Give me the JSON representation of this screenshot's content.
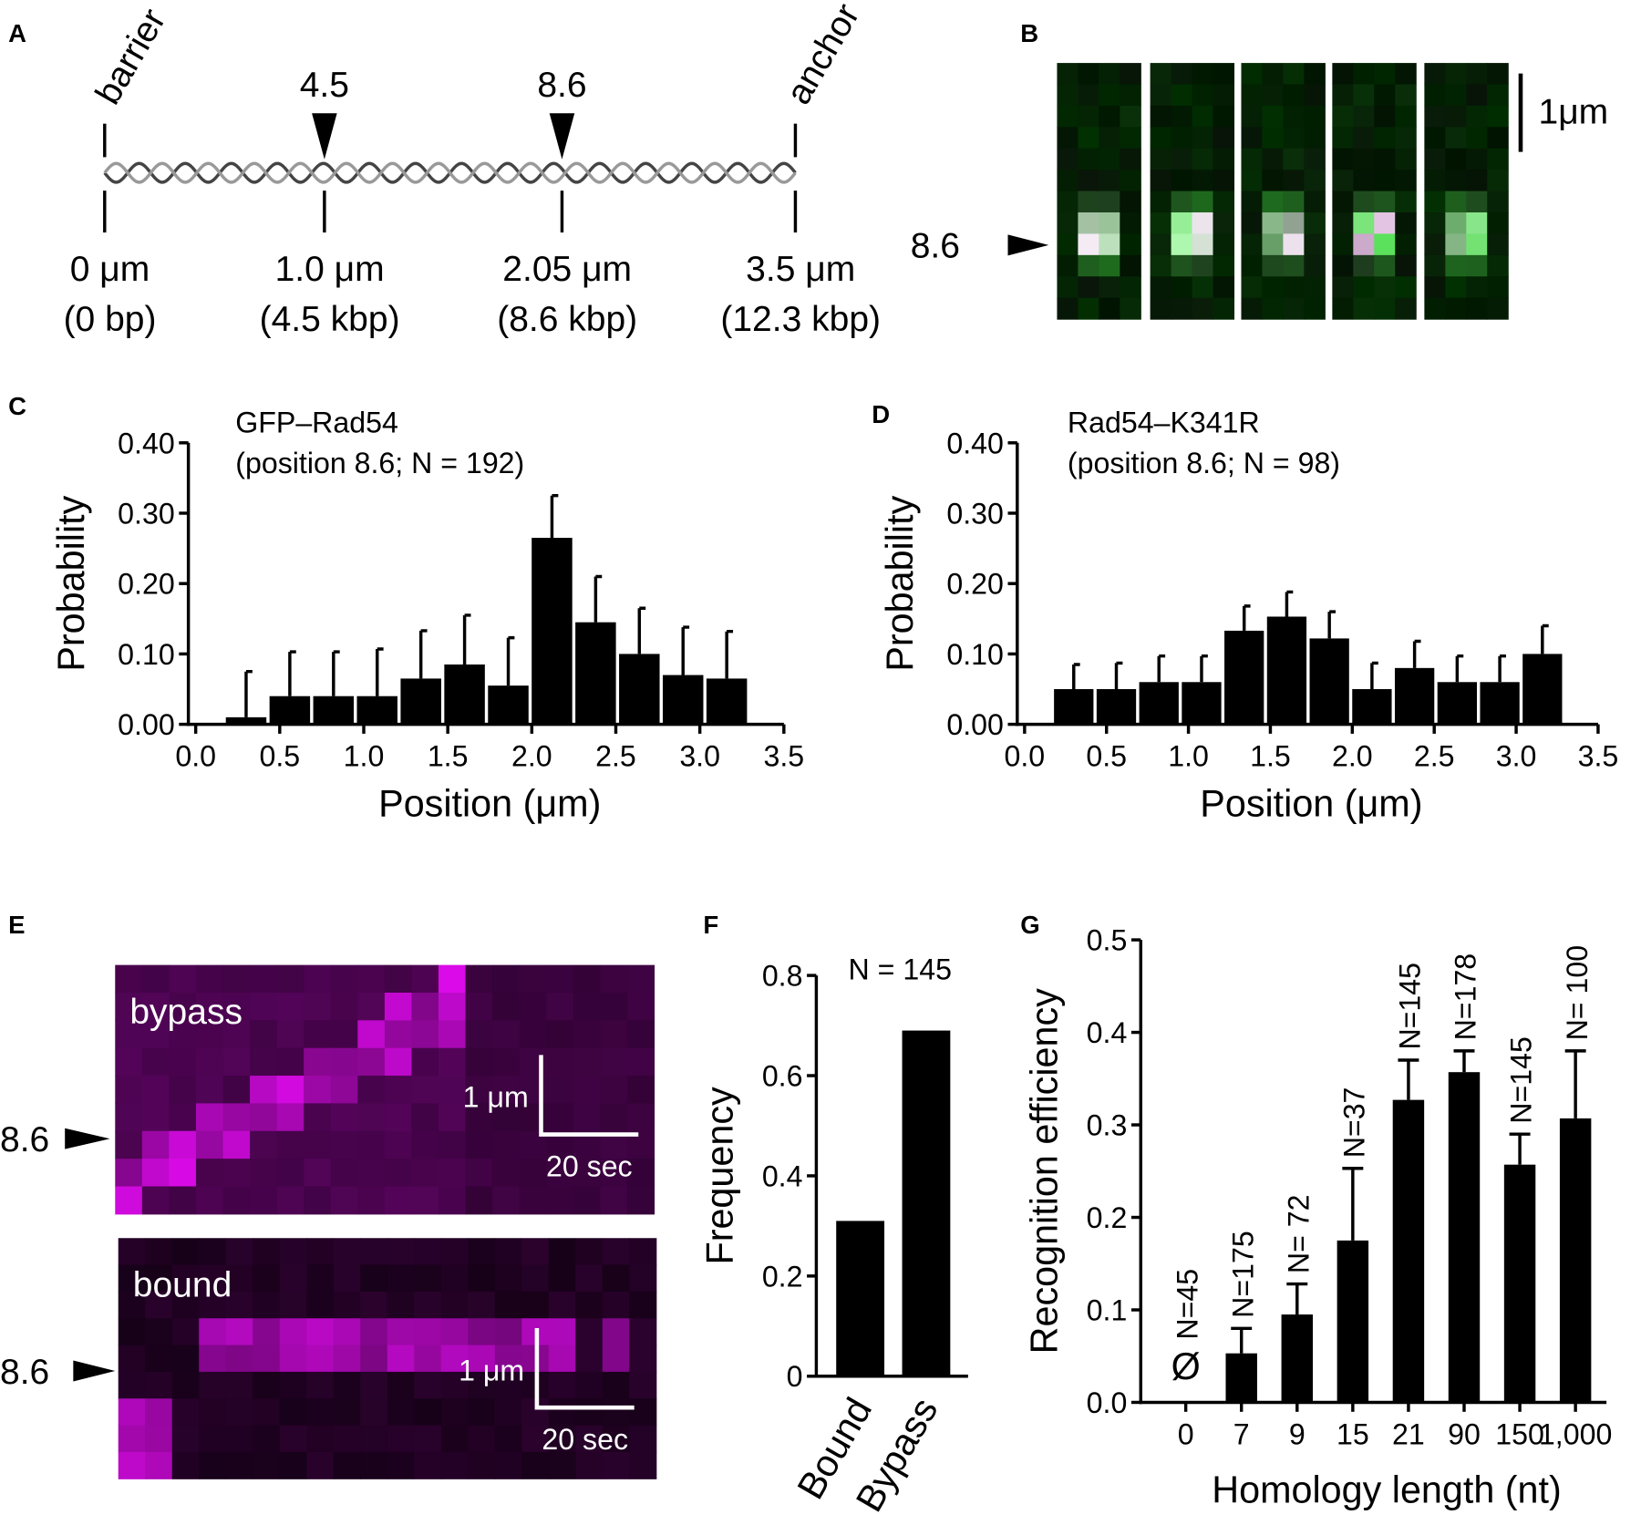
{
  "panel_labels": [
    "A",
    "B",
    "C",
    "D",
    "E",
    "F",
    "G"
  ],
  "panel_a": {
    "ends": [
      "barrier",
      "anchor"
    ],
    "sites": [
      "4.5",
      "8.6"
    ],
    "positions": [
      [
        "0 μm",
        "(0 bp)"
      ],
      [
        "1.0 μm",
        "(4.5 kbp)"
      ],
      [
        "2.05 μm",
        "(8.6 kbp)"
      ],
      [
        "3.5 μm",
        "(12.3 kbp)"
      ]
    ]
  },
  "panel_b": {
    "site": "8.6",
    "scale_bar": "1μm"
  },
  "panel_e": {
    "kymographs": [
      {
        "label": "bypass",
        "scale_length": "1 μm",
        "scale_time": "20 sec",
        "site": "8.6"
      },
      {
        "label": "bound",
        "scale_length": "1 μm",
        "scale_time": "20 sec",
        "site": "8.6"
      }
    ]
  },
  "chart_data": [
    {
      "type": "histogram",
      "title": "GFP–Rad54",
      "subtitle": "(position 8.6; N = 192)",
      "x_label": "Position (μm)",
      "y_label": "Probability",
      "color": "#000000",
      "bins": [
        0.17,
        0.43,
        0.69,
        0.95,
        1.21,
        1.47,
        1.73,
        1.99,
        2.25,
        2.51,
        2.77,
        3.03,
        3.29
      ],
      "values": [
        0.01,
        0.04,
        0.04,
        0.04,
        0.065,
        0.085,
        0.055,
        0.265,
        0.145,
        0.1,
        0.07,
        0.065
      ],
      "errors": [
        0.065,
        0.063,
        0.063,
        0.067,
        0.068,
        0.07,
        0.068,
        0.06,
        0.065,
        0.065,
        0.068,
        0.067
      ],
      "xlim": [
        0,
        3.5
      ],
      "xticks": [
        {
          "value": 0,
          "label": "0.0"
        },
        {
          "value": 0.5,
          "label": "0.5"
        },
        {
          "value": 1,
          "label": "1.0"
        },
        {
          "value": 1.5,
          "label": "1.5"
        },
        {
          "value": 2,
          "label": "2.0"
        },
        {
          "value": 2.5,
          "label": "2.5"
        },
        {
          "value": 3,
          "label": "3.0"
        },
        {
          "value": 3.5,
          "label": "3.5"
        }
      ],
      "ylim": [
        0,
        0.4
      ],
      "yticks": [
        {
          "value": 0,
          "label": "0.00"
        },
        {
          "value": 0.1,
          "label": "0.10"
        },
        {
          "value": 0.2,
          "label": "0.20"
        },
        {
          "value": 0.3,
          "label": "0.30"
        },
        {
          "value": 0.4,
          "label": "0.40"
        }
      ]
    },
    {
      "type": "histogram",
      "title": "Rad54–K341R",
      "subtitle": "(position 8.6; N = 98)",
      "x_label": "Position (μm)",
      "y_label": "Probability",
      "color": "#000000",
      "bins": [
        0.17,
        0.43,
        0.69,
        0.95,
        1.21,
        1.47,
        1.73,
        1.99,
        2.25,
        2.51,
        2.77,
        3.03,
        3.29
      ],
      "values": [
        0.05,
        0.05,
        0.06,
        0.06,
        0.133,
        0.153,
        0.122,
        0.05,
        0.08,
        0.06,
        0.06,
        0.1
      ],
      "errors": [
        0.035,
        0.037,
        0.037,
        0.037,
        0.035,
        0.035,
        0.038,
        0.037,
        0.038,
        0.037,
        0.037,
        0.04
      ],
      "xlim": [
        0,
        3.5
      ],
      "xticks": [
        {
          "value": 0,
          "label": "0.0"
        },
        {
          "value": 0.5,
          "label": "0.5"
        },
        {
          "value": 1,
          "label": "1.0"
        },
        {
          "value": 1.5,
          "label": "1.5"
        },
        {
          "value": 2,
          "label": "2.0"
        },
        {
          "value": 2.5,
          "label": "2.5"
        },
        {
          "value": 3,
          "label": "3.0"
        },
        {
          "value": 3.5,
          "label": "3.5"
        }
      ],
      "ylim": [
        0,
        0.4
      ],
      "yticks": [
        {
          "value": 0,
          "label": "0.00"
        },
        {
          "value": 0.1,
          "label": "0.10"
        },
        {
          "value": 0.2,
          "label": "0.20"
        },
        {
          "value": 0.3,
          "label": "0.30"
        },
        {
          "value": 0.4,
          "label": "0.40"
        }
      ]
    },
    {
      "type": "bar",
      "annotation": "N = 145",
      "y_label": "Frequency",
      "color": "#000000",
      "categories": [
        "Bound",
        "Bypass"
      ],
      "values": [
        0.31,
        0.69
      ],
      "ylim": [
        0,
        0.8
      ],
      "yticks": [
        0,
        0.2,
        0.4,
        0.6,
        0.8
      ]
    },
    {
      "type": "bar",
      "y_label": "Recognition efficiency",
      "x_label": "Homology length (nt)",
      "color": "#000000",
      "categories": [
        "0",
        "7",
        "9",
        "15",
        "21",
        "90",
        "150",
        "1,000"
      ],
      "values": [
        null,
        0.053,
        0.095,
        0.175,
        0.327,
        0.357,
        0.257,
        0.307
      ],
      "errors": [
        null,
        0.027,
        0.033,
        0.078,
        0.043,
        0.023,
        0.033,
        0.073
      ],
      "n_labels": [
        "N=45",
        "N=175",
        "N= 72",
        "N=37",
        "N=145",
        "N=178",
        "N=145",
        "N= 100"
      ],
      "empty_label": "Ø",
      "ylim": [
        0,
        0.5
      ],
      "yticks": [
        {
          "value": 0,
          "label": "0.0"
        },
        {
          "value": 0.1,
          "label": "0.1"
        },
        {
          "value": 0.2,
          "label": "0.2"
        },
        {
          "value": 0.3,
          "label": "0.3"
        },
        {
          "value": 0.4,
          "label": "0.4"
        },
        {
          "value": 0.5,
          "label": "0.5"
        }
      ]
    }
  ]
}
